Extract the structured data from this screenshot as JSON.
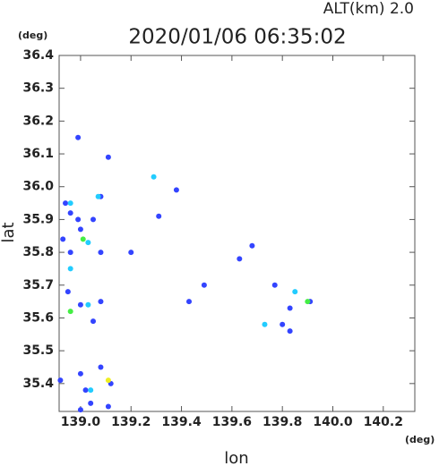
{
  "chart_data": {
    "type": "scatter",
    "title": "2020/01/06 06:35:02",
    "subtitle": "ALT(km)  2.0",
    "x_label": "lon",
    "y_label": "lat",
    "y_unit": "(deg)",
    "x_unit": "(deg)",
    "xlim": [
      138.915,
      140.325
    ],
    "ylim": [
      35.315,
      36.4
    ],
    "xticks": [
      {
        "value": 139.0,
        "label": "139.0"
      },
      139.2,
      139.4,
      139.6,
      139.8,
      {
        "value": 140.0,
        "label": "140.0"
      },
      140.2
    ],
    "yticks": [
      35.4,
      35.5,
      35.6,
      35.7,
      35.8,
      35.9,
      {
        "value": 36.0,
        "label": "36.0"
      },
      36.1,
      36.2,
      36.3,
      36.4
    ],
    "series": [
      {
        "color": "#3344ff",
        "x": [
          138.99,
          139.11,
          139.08,
          138.94,
          138.99,
          138.96,
          139.0,
          138.93,
          138.96,
          139.08,
          139.05,
          139.31,
          139.38,
          139.68,
          139.49,
          139.43,
          139.77,
          139.83,
          139.91,
          139.8,
          139.83,
          138.95,
          139.0,
          139.08,
          139.05,
          139.08,
          139.0,
          139.12,
          138.92,
          139.02,
          139.04,
          139.0,
          139.11,
          139.63,
          139.2
        ],
        "values": [
          36.15,
          36.09,
          35.97,
          35.95,
          35.9,
          35.92,
          35.87,
          35.84,
          35.8,
          35.8,
          35.9,
          35.91,
          35.99,
          35.82,
          35.7,
          35.65,
          35.7,
          35.63,
          35.65,
          35.58,
          35.56,
          35.68,
          35.64,
          35.65,
          35.59,
          35.45,
          35.43,
          35.4,
          35.41,
          35.38,
          35.34,
          35.32,
          35.33,
          35.78,
          35.8
        ]
      },
      {
        "color": "#22ccff",
        "x": [
          138.96,
          139.07,
          138.96,
          139.03,
          139.29,
          139.73,
          139.85,
          139.04,
          139.03
        ],
        "values": [
          35.95,
          35.97,
          35.75,
          35.83,
          36.03,
          35.58,
          35.68,
          35.38,
          35.64
        ]
      },
      {
        "color": "#44ee44",
        "x": [
          138.96,
          139.01,
          139.9
        ],
        "values": [
          35.62,
          35.84,
          35.65
        ]
      },
      {
        "color": "#eeee22",
        "x": [
          139.11
        ],
        "values": [
          35.41
        ]
      }
    ]
  }
}
